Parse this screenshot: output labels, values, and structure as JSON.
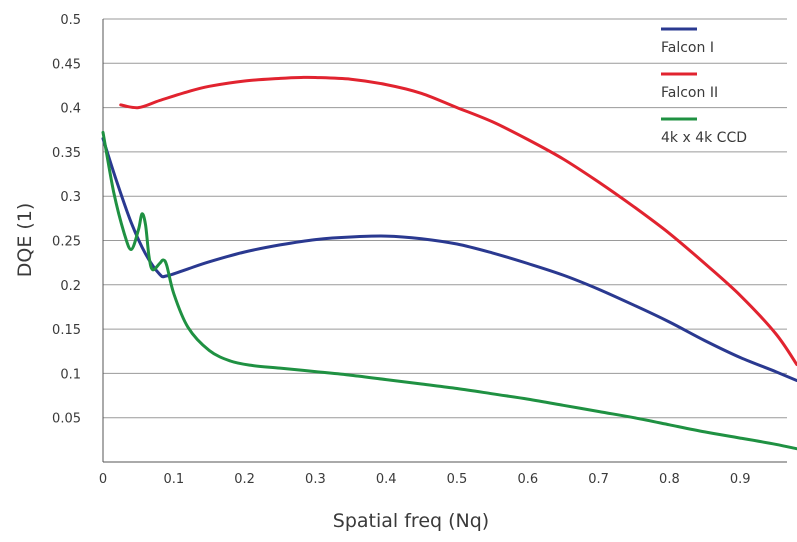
{
  "chart_data": {
    "type": "line",
    "title": "",
    "xlabel": "Spatial freq (Nq)",
    "ylabel": "DQE (1)",
    "xlim": [
      0,
      0.99
    ],
    "ylim": [
      0,
      0.5
    ],
    "x_ticks": [
      "0",
      "0.1",
      "0.2",
      "0.3",
      "0.4",
      "0.5",
      "0.6",
      "0.7",
      "0.8",
      "0.9"
    ],
    "x_tick_values": [
      0,
      0.1,
      0.2,
      0.3,
      0.4,
      0.5,
      0.6,
      0.7,
      0.8,
      0.9
    ],
    "y_ticks": [
      "0.05",
      "0.1",
      "0.15",
      "0.2",
      "0.25",
      "0.3",
      "0.35",
      "0.4",
      "0.45",
      "0.5"
    ],
    "y_tick_values": [
      0.05,
      0.1,
      0.15,
      0.2,
      0.25,
      0.3,
      0.35,
      0.4,
      0.45,
      0.5
    ],
    "grid": "horizontal",
    "legend_position": "top-right",
    "series": [
      {
        "name": "Falcon I",
        "color": "#2a3990",
        "points": [
          [
            0.0,
            0.365
          ],
          [
            0.02,
            0.315
          ],
          [
            0.04,
            0.27
          ],
          [
            0.06,
            0.235
          ],
          [
            0.08,
            0.212
          ],
          [
            0.09,
            0.21
          ],
          [
            0.12,
            0.218
          ],
          [
            0.15,
            0.226
          ],
          [
            0.2,
            0.237
          ],
          [
            0.25,
            0.245
          ],
          [
            0.3,
            0.251
          ],
          [
            0.35,
            0.254
          ],
          [
            0.4,
            0.255
          ],
          [
            0.45,
            0.252
          ],
          [
            0.5,
            0.246
          ],
          [
            0.55,
            0.236
          ],
          [
            0.6,
            0.224
          ],
          [
            0.65,
            0.211
          ],
          [
            0.7,
            0.195
          ],
          [
            0.75,
            0.177
          ],
          [
            0.8,
            0.158
          ],
          [
            0.85,
            0.137
          ],
          [
            0.9,
            0.118
          ],
          [
            0.95,
            0.102
          ],
          [
            0.98,
            0.092
          ]
        ]
      },
      {
        "name": "Falcon II",
        "color": "#e1232f",
        "points": [
          [
            0.025,
            0.403
          ],
          [
            0.05,
            0.4
          ],
          [
            0.08,
            0.408
          ],
          [
            0.12,
            0.418
          ],
          [
            0.15,
            0.424
          ],
          [
            0.2,
            0.43
          ],
          [
            0.25,
            0.433
          ],
          [
            0.28,
            0.434
          ],
          [
            0.3,
            0.434
          ],
          [
            0.35,
            0.432
          ],
          [
            0.4,
            0.426
          ],
          [
            0.45,
            0.416
          ],
          [
            0.5,
            0.4
          ],
          [
            0.55,
            0.384
          ],
          [
            0.6,
            0.364
          ],
          [
            0.65,
            0.342
          ],
          [
            0.7,
            0.316
          ],
          [
            0.75,
            0.288
          ],
          [
            0.8,
            0.258
          ],
          [
            0.85,
            0.224
          ],
          [
            0.9,
            0.188
          ],
          [
            0.95,
            0.145
          ],
          [
            0.98,
            0.11
          ]
        ]
      },
      {
        "name": "4k x 4k CCD",
        "color": "#1f9142",
        "points": [
          [
            0.0,
            0.372
          ],
          [
            0.015,
            0.305
          ],
          [
            0.03,
            0.258
          ],
          [
            0.04,
            0.24
          ],
          [
            0.05,
            0.262
          ],
          [
            0.055,
            0.28
          ],
          [
            0.06,
            0.268
          ],
          [
            0.065,
            0.232
          ],
          [
            0.07,
            0.217
          ],
          [
            0.08,
            0.224
          ],
          [
            0.085,
            0.228
          ],
          [
            0.09,
            0.222
          ],
          [
            0.1,
            0.19
          ],
          [
            0.12,
            0.152
          ],
          [
            0.15,
            0.126
          ],
          [
            0.18,
            0.114
          ],
          [
            0.21,
            0.109
          ],
          [
            0.25,
            0.106
          ],
          [
            0.3,
            0.102
          ],
          [
            0.35,
            0.098
          ],
          [
            0.4,
            0.093
          ],
          [
            0.45,
            0.088
          ],
          [
            0.5,
            0.083
          ],
          [
            0.55,
            0.077
          ],
          [
            0.6,
            0.071
          ],
          [
            0.65,
            0.064
          ],
          [
            0.7,
            0.057
          ],
          [
            0.75,
            0.05
          ],
          [
            0.8,
            0.042
          ],
          [
            0.85,
            0.034
          ],
          [
            0.9,
            0.027
          ],
          [
            0.95,
            0.02
          ],
          [
            0.98,
            0.015
          ]
        ]
      }
    ]
  }
}
